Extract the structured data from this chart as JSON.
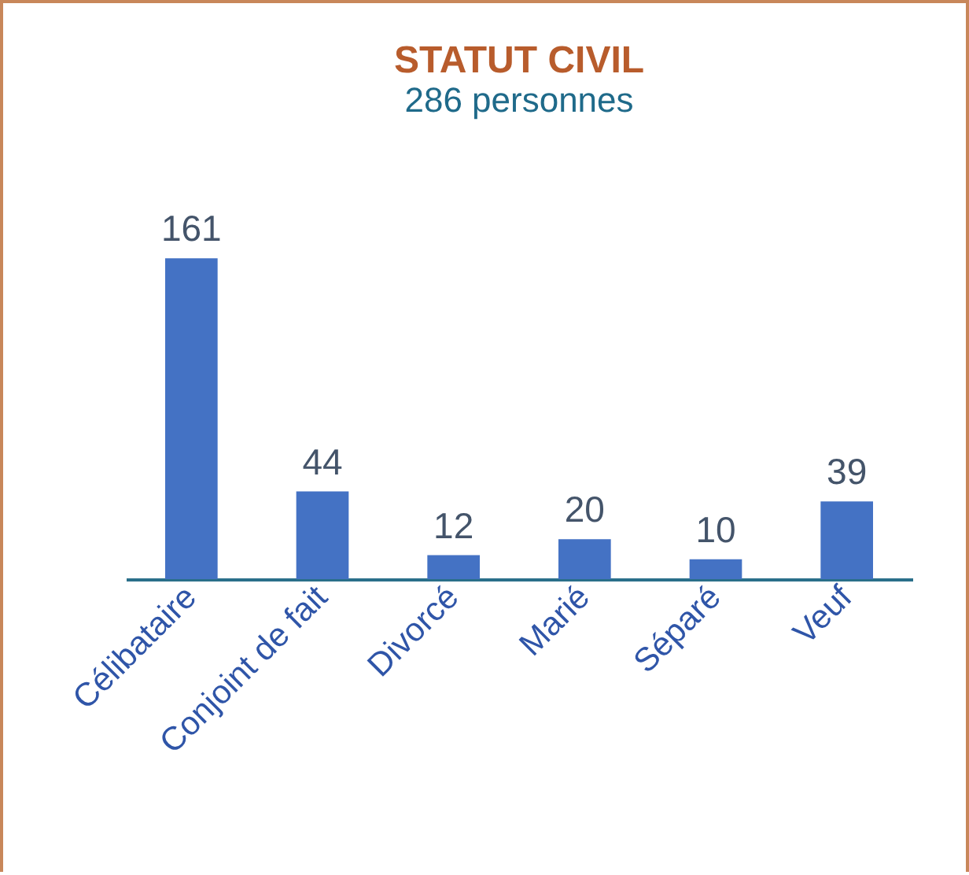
{
  "chart_data": {
    "type": "bar",
    "title": "STATUT CIVIL",
    "subtitle": "286 personnes",
    "categories": [
      "Célibataire",
      "Conjoint de fait",
      "Divorcé",
      "Marié",
      "Séparé",
      "Veuf"
    ],
    "values": [
      161,
      44,
      12,
      20,
      10,
      39
    ],
    "color": "#4472c4",
    "data_labels": true,
    "tick_labels": "x"
  }
}
